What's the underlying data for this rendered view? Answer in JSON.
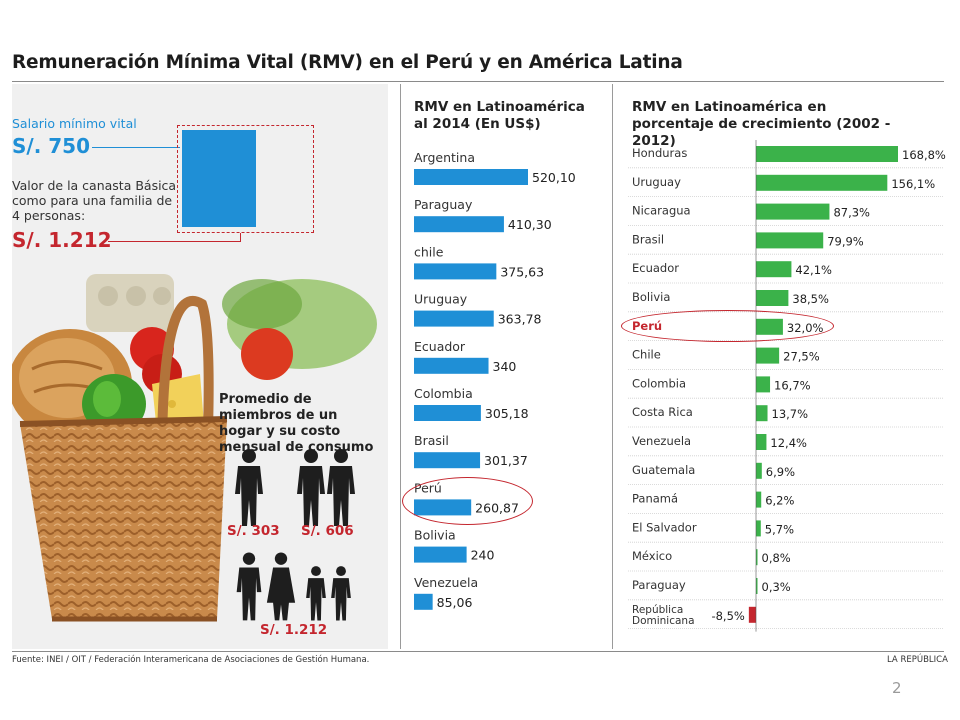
{
  "header": {
    "title": "Remuneración Mínima Vital (RMV) en el Perú y en América Latina"
  },
  "left_panel": {
    "salario_label": "Salario mínimo vital",
    "salario_value": "S/. 750",
    "canasta_label": "Valor de la canasta Básica como para una familia de 4 personas:",
    "canasta_value": "S/. 1.212",
    "promedio_title": "Promedio de miembros de un hogar y su costo mensual de consumo",
    "costs": [
      "S/. 303",
      "S/. 606",
      "S/. 1.212"
    ],
    "colors": {
      "blue": "#1f8fd6",
      "red": "#c4262e"
    }
  },
  "chart_data": [
    {
      "type": "bar",
      "title": "RMV en Latinoamérica al 2014 (En US$)",
      "categories": [
        "Argentina",
        "Paraguay",
        "chile",
        "Uruguay",
        "Ecuador",
        "Colombia",
        "Brasil",
        "Perú",
        "Bolivia",
        "Venezuela"
      ],
      "values": [
        520.1,
        410.3,
        375.63,
        363.78,
        340,
        305.18,
        301.37,
        260.87,
        240,
        85.06
      ],
      "value_labels": [
        "520,10",
        "410,30",
        "375,63",
        "363,78",
        "340",
        "305,18",
        "301,37",
        "260,87",
        "240",
        "85,06"
      ],
      "highlight": "Perú",
      "color": "#1f8fd6",
      "orientation": "horizontal"
    },
    {
      "type": "bar",
      "title": "RMV en Latinoamérica en porcentaje de crecimiento (2002 - 2012)",
      "categories": [
        "Honduras",
        "Uruguay",
        "Nicaragua",
        "Brasil",
        "Ecuador",
        "Bolivia",
        "Perú",
        "Chile",
        "Colombia",
        "Costa Rica",
        "Venezuela",
        "Guatemala",
        "Panamá",
        "El Salvador",
        "México",
        "Paraguay",
        "República Dominicana"
      ],
      "values": [
        168.8,
        156.1,
        87.3,
        79.9,
        42.1,
        38.5,
        32.0,
        27.5,
        16.7,
        13.7,
        12.4,
        6.9,
        6.2,
        5.7,
        0.8,
        0.3,
        -8.5
      ],
      "value_labels": [
        "168,8%",
        "156,1%",
        "87,3%",
        "79,9%",
        "42,1%",
        "38,5%",
        "32,0%",
        "27,5%",
        "16,7%",
        "13,7%",
        "12,4%",
        "6,9%",
        "6,2%",
        "5,7%",
        "0,8%",
        "0,3%",
        "-8,5%"
      ],
      "highlight": "Perú",
      "color": "#3bb24a",
      "negative_color": "#c4262e",
      "orientation": "horizontal"
    }
  ],
  "footer": {
    "source": "Fuente: INEI / OIT / Federación Interamericana de Asociaciones de Gestión Humana.",
    "credit": "LA REPÚBLICA",
    "page": "2"
  }
}
